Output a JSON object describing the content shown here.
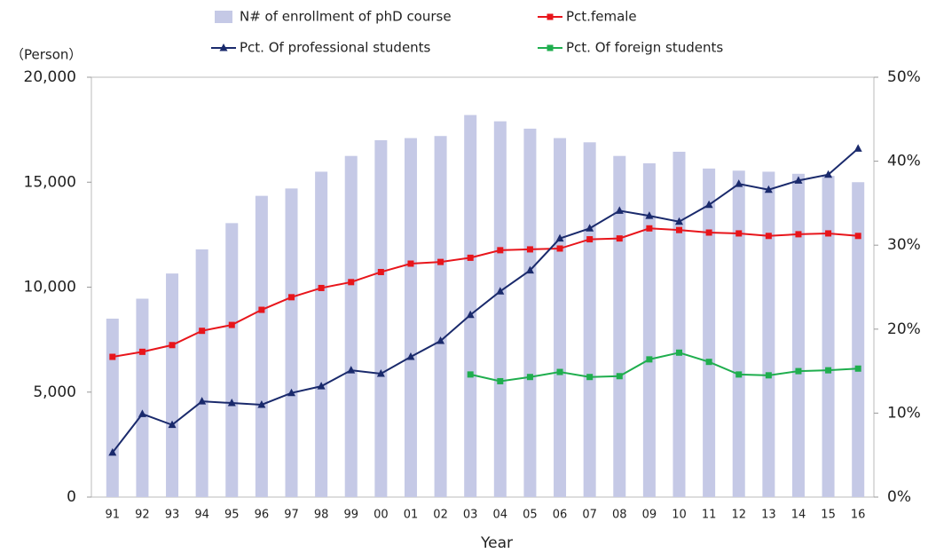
{
  "chart_data": {
    "type": "bar-line",
    "y_unit_label": "（Person）",
    "x_label": "Year",
    "categories": [
      "91",
      "92",
      "93",
      "94",
      "95",
      "96",
      "97",
      "98",
      "99",
      "00",
      "01",
      "02",
      "03",
      "04",
      "05",
      "06",
      "07",
      "08",
      "09",
      "10",
      "11",
      "12",
      "13",
      "14",
      "15",
      "16"
    ],
    "series": [
      {
        "name": "N# of enrollment of phD course",
        "type": "bar",
        "color": "#c5c9e6",
        "values": [
          8500,
          9450,
          10650,
          11800,
          13050,
          14350,
          14700,
          15500,
          16250,
          17000,
          17100,
          17200,
          18200,
          17900,
          17550,
          17100,
          16900,
          16250,
          15900,
          16450,
          15650,
          15550,
          15500,
          15400,
          15300,
          15000
        ]
      },
      {
        "name": "Pct.female",
        "type": "line",
        "marker": "square",
        "axis": "y2",
        "color": "#e8151b",
        "values": [
          16.7,
          17.3,
          18.1,
          19.8,
          20.5,
          22.3,
          23.8,
          24.9,
          25.6,
          26.8,
          27.8,
          28.0,
          28.5,
          29.4,
          29.5,
          29.6,
          30.7,
          30.8,
          32.0,
          31.8,
          31.5,
          31.4,
          31.1,
          31.3,
          31.4,
          31.1
        ]
      },
      {
        "name": "Pct. Of professional students",
        "type": "line",
        "marker": "triangle",
        "axis": "y2",
        "color": "#1a2a6c",
        "values": [
          5.3,
          9.9,
          8.6,
          11.4,
          11.2,
          11.0,
          12.4,
          13.2,
          15.1,
          14.7,
          16.7,
          18.6,
          21.7,
          24.5,
          27.0,
          30.8,
          32.0,
          34.1,
          33.5,
          32.8,
          34.8,
          37.3,
          36.6,
          37.7,
          38.4,
          41.5
        ]
      },
      {
        "name": "Pct. Of foreign students",
        "type": "line",
        "marker": "square",
        "axis": "y2",
        "color": "#1fae4e",
        "values": [
          null,
          null,
          null,
          null,
          null,
          null,
          null,
          null,
          null,
          null,
          null,
          null,
          14.6,
          13.8,
          14.3,
          14.9,
          14.3,
          14.4,
          16.4,
          17.2,
          16.1,
          14.6,
          14.5,
          15.0,
          15.1,
          15.3
        ]
      }
    ],
    "ylim": [
      0,
      20000
    ],
    "yticks": [
      0,
      {
        "value": 5000,
        "label": "5,000"
      },
      {
        "value": 10000,
        "label": "10,000"
      },
      {
        "value": 15000,
        "label": "15,000"
      },
      {
        "value": 20000,
        "label": "20,000"
      }
    ],
    "y2lim": [
      0,
      50
    ],
    "y2ticks": [
      {
        "value": 0,
        "label": "0%"
      },
      {
        "value": 10,
        "label": "10%"
      },
      {
        "value": 20,
        "label": "20%"
      },
      {
        "value": 30,
        "label": "30%"
      },
      {
        "value": 40,
        "label": "40%"
      },
      {
        "value": 50,
        "label": "50%"
      }
    ]
  }
}
